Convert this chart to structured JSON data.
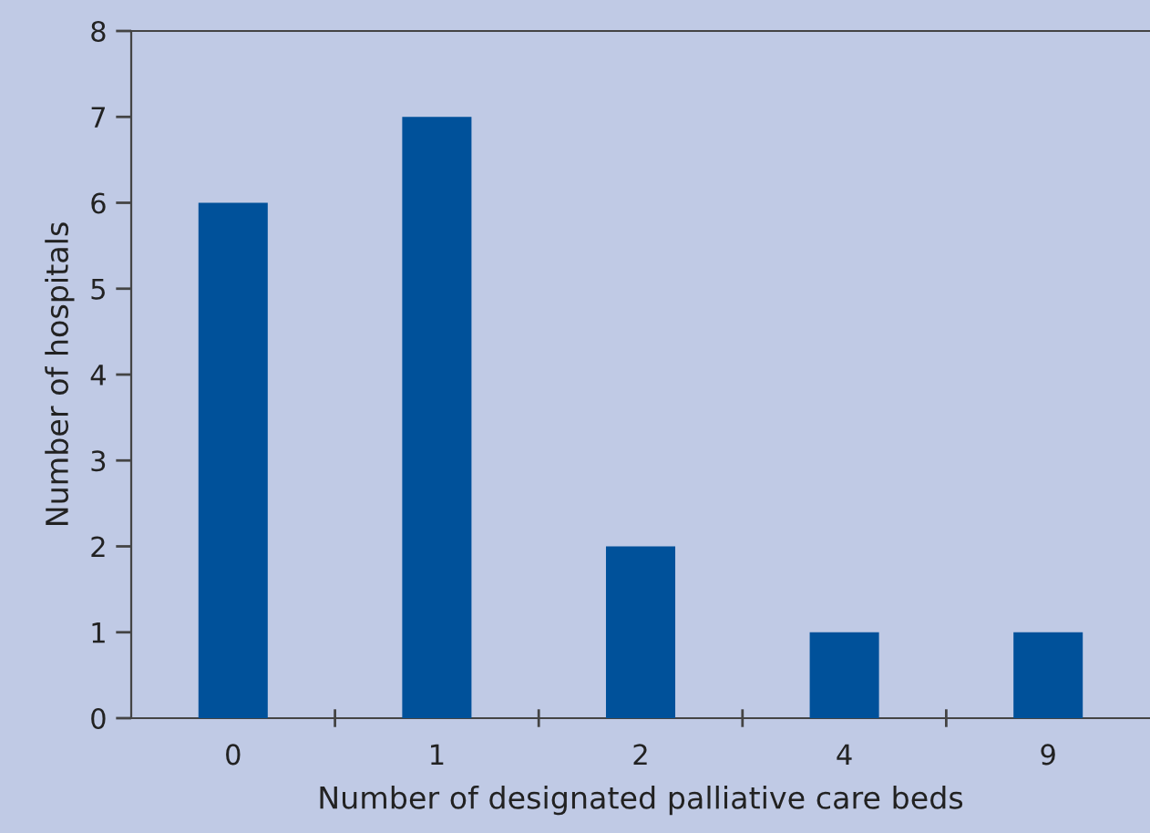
{
  "chart_data": {
    "type": "bar",
    "xlabel": "Number of designated palliative care beds",
    "ylabel": "Number of hospitals",
    "categories": [
      "0",
      "1",
      "2",
      "4",
      "9"
    ],
    "values": [
      6,
      7,
      2,
      1,
      1
    ],
    "color": "#00519a",
    "ylim": [
      0,
      8
    ],
    "yticks": [
      0,
      1,
      2,
      3,
      4,
      5,
      6,
      7,
      8
    ],
    "grid": false,
    "legend": false
  }
}
